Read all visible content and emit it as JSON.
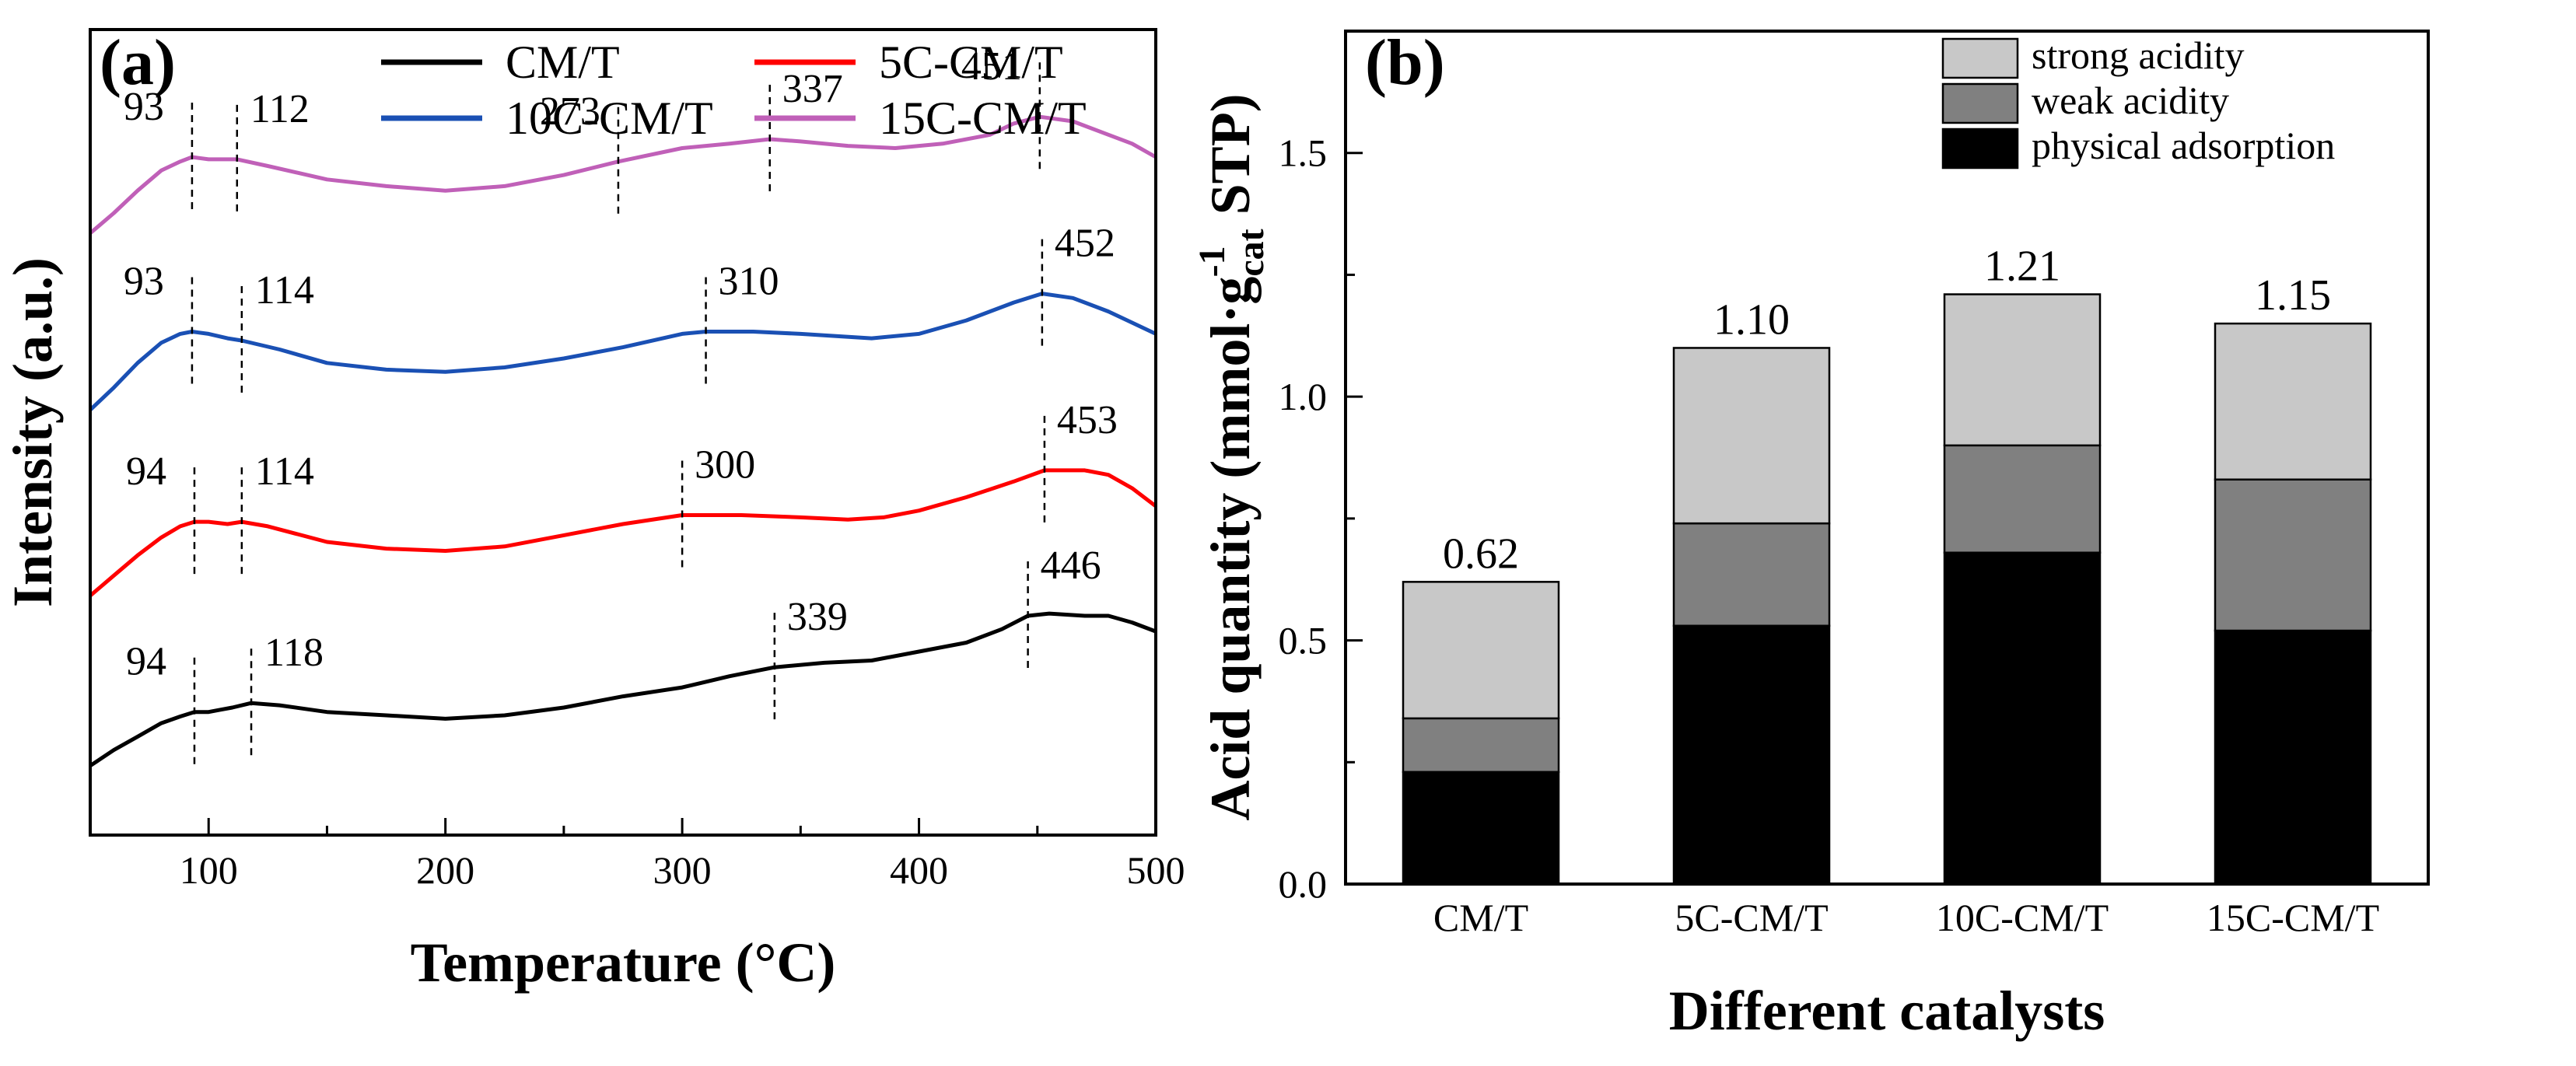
{
  "chart_data": [
    {
      "type": "line",
      "panel_label": "(a)",
      "xlabel": "Temperature (°C)",
      "ylabel": "Intensity (a.u.)",
      "xlim": [
        50,
        500
      ],
      "xticks": [
        100,
        200,
        300,
        400,
        500
      ],
      "yticks_visible": false,
      "legend_position": "top-right",
      "series": [
        {
          "name": "CM/T",
          "color": "#000000",
          "points": [
            [
              50,
              0.06
            ],
            [
              60,
              0.13
            ],
            [
              70,
              0.19
            ],
            [
              80,
              0.25
            ],
            [
              88,
              0.28
            ],
            [
              94,
              0.3
            ],
            [
              100,
              0.3
            ],
            [
              105,
              0.31
            ],
            [
              110,
              0.32
            ],
            [
              118,
              0.34
            ],
            [
              130,
              0.33
            ],
            [
              150,
              0.3
            ],
            [
              175,
              0.285
            ],
            [
              200,
              0.27
            ],
            [
              225,
              0.285
            ],
            [
              250,
              0.32
            ],
            [
              275,
              0.37
            ],
            [
              300,
              0.41
            ],
            [
              320,
              0.46
            ],
            [
              339,
              0.5
            ],
            [
              360,
              0.52
            ],
            [
              380,
              0.53
            ],
            [
              400,
              0.57
            ],
            [
              420,
              0.61
            ],
            [
              435,
              0.67
            ],
            [
              446,
              0.73
            ],
            [
              455,
              0.74
            ],
            [
              470,
              0.73
            ],
            [
              480,
              0.73
            ],
            [
              490,
              0.7
            ],
            [
              500,
              0.66
            ]
          ]
        },
        {
          "name": "5C-CM/T",
          "color": "#ff0000",
          "points": [
            [
              50,
              0.82
            ],
            [
              60,
              0.91
            ],
            [
              70,
              1.0
            ],
            [
              80,
              1.08
            ],
            [
              88,
              1.13
            ],
            [
              94,
              1.15
            ],
            [
              100,
              1.15
            ],
            [
              108,
              1.14
            ],
            [
              114,
              1.15
            ],
            [
              125,
              1.13
            ],
            [
              150,
              1.06
            ],
            [
              175,
              1.03
            ],
            [
              200,
              1.02
            ],
            [
              225,
              1.04
            ],
            [
              250,
              1.09
            ],
            [
              275,
              1.14
            ],
            [
              300,
              1.18
            ],
            [
              325,
              1.18
            ],
            [
              350,
              1.17
            ],
            [
              370,
              1.16
            ],
            [
              385,
              1.17
            ],
            [
              400,
              1.2
            ],
            [
              420,
              1.26
            ],
            [
              440,
              1.33
            ],
            [
              453,
              1.38
            ],
            [
              470,
              1.38
            ],
            [
              480,
              1.36
            ],
            [
              490,
              1.3
            ],
            [
              500,
              1.22
            ]
          ]
        },
        {
          "name": "10C-CM/T",
          "color": "#1a50b4",
          "points": [
            [
              50,
              1.65
            ],
            [
              60,
              1.75
            ],
            [
              70,
              1.86
            ],
            [
              80,
              1.95
            ],
            [
              88,
              1.99
            ],
            [
              93,
              2.0
            ],
            [
              100,
              1.99
            ],
            [
              108,
              1.97
            ],
            [
              114,
              1.96
            ],
            [
              130,
              1.92
            ],
            [
              150,
              1.86
            ],
            [
              175,
              1.83
            ],
            [
              200,
              1.82
            ],
            [
              225,
              1.84
            ],
            [
              250,
              1.88
            ],
            [
              275,
              1.93
            ],
            [
              300,
              1.99
            ],
            [
              310,
              2.0
            ],
            [
              330,
              2.0
            ],
            [
              350,
              1.99
            ],
            [
              365,
              1.98
            ],
            [
              380,
              1.97
            ],
            [
              400,
              1.99
            ],
            [
              420,
              2.05
            ],
            [
              440,
              2.13
            ],
            [
              452,
              2.17
            ],
            [
              465,
              2.15
            ],
            [
              480,
              2.09
            ],
            [
              490,
              2.04
            ],
            [
              500,
              1.99
            ]
          ]
        },
        {
          "name": "15C-CM/T",
          "color": "#c060b8",
          "points": [
            [
              50,
              2.44
            ],
            [
              60,
              2.53
            ],
            [
              70,
              2.63
            ],
            [
              80,
              2.72
            ],
            [
              88,
              2.76
            ],
            [
              93,
              2.78
            ],
            [
              100,
              2.77
            ],
            [
              108,
              2.77
            ],
            [
              112,
              2.77
            ],
            [
              125,
              2.74
            ],
            [
              150,
              2.68
            ],
            [
              175,
              2.65
            ],
            [
              200,
              2.63
            ],
            [
              225,
              2.65
            ],
            [
              250,
              2.7
            ],
            [
              273,
              2.76
            ],
            [
              300,
              2.82
            ],
            [
              320,
              2.84
            ],
            [
              337,
              2.86
            ],
            [
              350,
              2.85
            ],
            [
              370,
              2.83
            ],
            [
              390,
              2.82
            ],
            [
              410,
              2.84
            ],
            [
              430,
              2.88
            ],
            [
              440,
              2.93
            ],
            [
              451,
              2.96
            ],
            [
              465,
              2.94
            ],
            [
              480,
              2.88
            ],
            [
              490,
              2.84
            ],
            [
              500,
              2.78
            ]
          ]
        }
      ],
      "annotations": [
        {
          "series": "CM/T",
          "x": 94,
          "label": "94"
        },
        {
          "series": "CM/T",
          "x": 118,
          "label": "118"
        },
        {
          "series": "CM/T",
          "x": 339,
          "label": "339"
        },
        {
          "series": "CM/T",
          "x": 446,
          "label": "446"
        },
        {
          "series": "5C-CM/T",
          "x": 94,
          "label": "94"
        },
        {
          "series": "5C-CM/T",
          "x": 114,
          "label": "114"
        },
        {
          "series": "5C-CM/T",
          "x": 300,
          "label": "300"
        },
        {
          "series": "5C-CM/T",
          "x": 453,
          "label": "453"
        },
        {
          "series": "10C-CM/T",
          "x": 93,
          "label": "93"
        },
        {
          "series": "10C-CM/T",
          "x": 114,
          "label": "114"
        },
        {
          "series": "10C-CM/T",
          "x": 310,
          "label": "310"
        },
        {
          "series": "10C-CM/T",
          "x": 452,
          "label": "452"
        },
        {
          "series": "15C-CM/T",
          "x": 93,
          "label": "93"
        },
        {
          "series": "15C-CM/T",
          "x": 112,
          "label": "112"
        },
        {
          "series": "15C-CM/T",
          "x": 273,
          "label": "273"
        },
        {
          "series": "15C-CM/T",
          "x": 337,
          "label": "337"
        },
        {
          "series": "15C-CM/T",
          "x": 451,
          "label": "451"
        }
      ]
    },
    {
      "type": "bar",
      "stacked": true,
      "panel_label": "(b)",
      "xlabel": "Different catalysts",
      "ylabel": "Acid quantity (mmol·g",
      "ylabel_sub": "cat",
      "ylabel_sup": "-1",
      "ylabel_tail": "STP)",
      "ylim": [
        0.0,
        1.75
      ],
      "yticks": [
        "0.0",
        "0.5",
        "1.0",
        "1.5"
      ],
      "categories": [
        "CM/T",
        "5C-CM/T",
        "10C-CM/T",
        "15C-CM/T"
      ],
      "legend_position": "top-right",
      "series": [
        {
          "name": "physical adsorption",
          "color": "#000000",
          "values": [
            0.23,
            0.53,
            0.68,
            0.52
          ]
        },
        {
          "name": "weak acidity",
          "color": "#808080",
          "values": [
            0.11,
            0.21,
            0.22,
            0.31
          ]
        },
        {
          "name": "strong acidity",
          "color": "#c8c8c8",
          "values": [
            0.28,
            0.36,
            0.31,
            0.32
          ]
        }
      ],
      "totals": [
        "0.62",
        "1.10",
        "1.21",
        "1.15"
      ],
      "legend_order": [
        "strong acidity",
        "weak acidity",
        "physical adsorption"
      ]
    }
  ]
}
